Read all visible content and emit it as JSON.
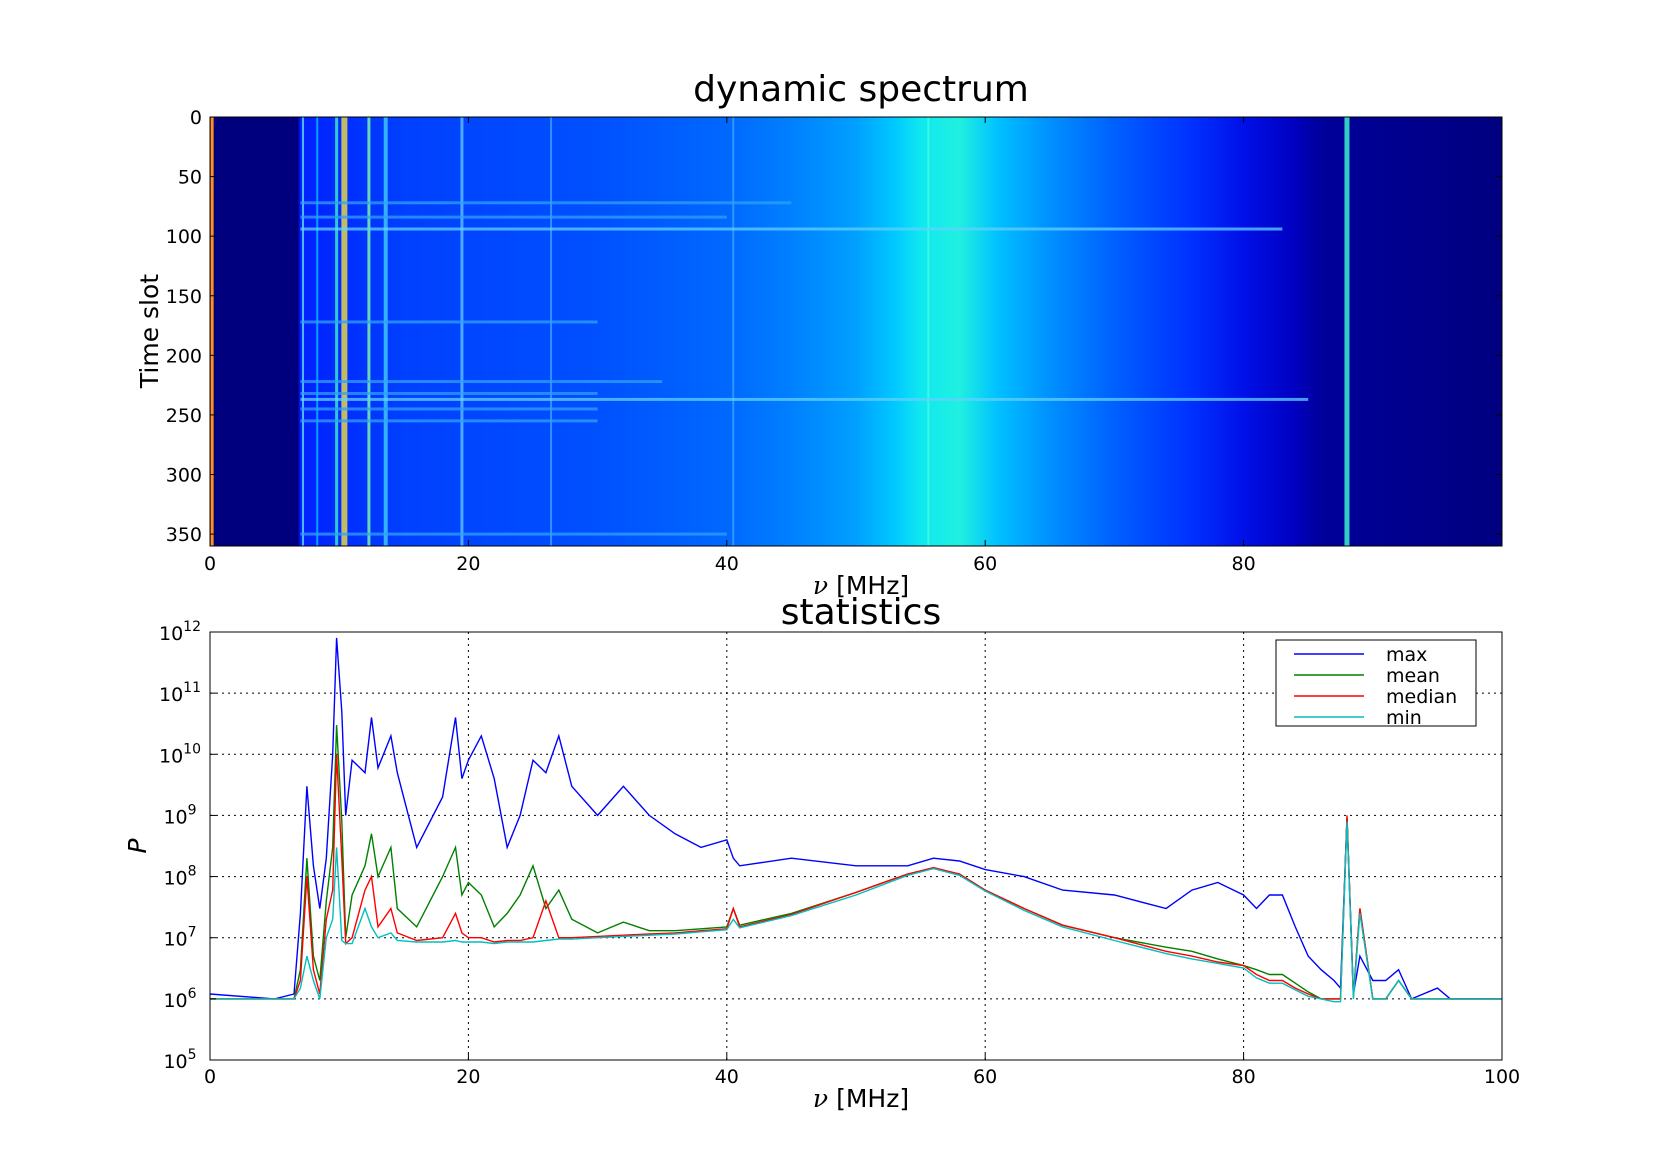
{
  "chart_data": [
    {
      "type": "heatmap",
      "title": "dynamic spectrum",
      "xlabel_symbol": "ν",
      "xlabel_unit": "[MHz]",
      "ylabel": "Time slot",
      "xlim": [
        0,
        100
      ],
      "ylim": [
        360,
        0
      ],
      "x_ticks": [
        "0",
        "20",
        "40",
        "60",
        "80"
      ],
      "y_ticks": [
        "0",
        "50",
        "100",
        "150",
        "200",
        "250",
        "300",
        "350"
      ],
      "colormap": "jet",
      "grid": false,
      "bright_time_slots": [
        72,
        84,
        94,
        172,
        222,
        232,
        237,
        245,
        255,
        350
      ],
      "bright_channels_mhz": [
        7.2,
        8.3,
        9.8,
        10.4,
        12.3,
        13.6,
        19.5,
        26.4,
        40.5,
        55.6,
        88.0
      ]
    },
    {
      "type": "line",
      "title": "statistics",
      "xlabel_symbol": "ν",
      "xlabel_unit": "[MHz]",
      "ylabel": "P",
      "xlim": [
        0,
        100
      ],
      "ylim": [
        100000,
        1000000000000
      ],
      "yscale": "log",
      "grid": true,
      "legend_position": "top-right",
      "x_ticks": [
        "0",
        "20",
        "40",
        "60",
        "80",
        "100"
      ],
      "y_tick_exponents": [
        "5",
        "6",
        "7",
        "8",
        "9",
        "10",
        "11",
        "12"
      ],
      "x": [
        0,
        5,
        6.5,
        7,
        7.5,
        8,
        8.5,
        9,
        9.5,
        9.8,
        10.2,
        10.5,
        11,
        12,
        12.5,
        13,
        14,
        14.5,
        16,
        18,
        19,
        19.5,
        20,
        21,
        22,
        23,
        24,
        25,
        26,
        27,
        28,
        30,
        32,
        34,
        36,
        38,
        40,
        40.5,
        41,
        45,
        50,
        54,
        56,
        58,
        60,
        63,
        66,
        70,
        74,
        76,
        78,
        80,
        81,
        82,
        83,
        84,
        85,
        86,
        87,
        87.5,
        88,
        88.5,
        89,
        90,
        91,
        92,
        93,
        95,
        96,
        100
      ],
      "series": [
        {
          "name": "max",
          "color": "#0000ff",
          "values": [
            1200000.0,
            1000000.0,
            1200000.0,
            25000000.0,
            3000000000.0,
            150000000.0,
            30000000.0,
            200000000.0,
            10000000000.0,
            800000000000.0,
            50000000000.0,
            1000000000.0,
            8000000000.0,
            5000000000.0,
            40000000000.0,
            6000000000.0,
            20000000000.0,
            5000000000.0,
            300000000.0,
            2000000000.0,
            40000000000.0,
            4000000000.0,
            8000000000.0,
            20000000000.0,
            4000000000.0,
            300000000.0,
            1000000000.0,
            8000000000.0,
            5000000000.0,
            20000000000.0,
            3000000000.0,
            1000000000.0,
            3000000000.0,
            1000000000.0,
            500000000.0,
            300000000.0,
            400000000.0,
            200000000.0,
            150000000.0,
            200000000.0,
            150000000.0,
            150000000.0,
            200000000.0,
            180000000.0,
            130000000.0,
            100000000.0,
            60000000.0,
            50000000.0,
            30000000.0,
            60000000.0,
            80000000.0,
            50000000.0,
            30000000.0,
            50000000.0,
            50000000.0,
            15000000.0,
            5000000.0,
            3000000.0,
            2000000.0,
            1500000.0,
            900000000.0,
            1200000.0,
            5000000.0,
            2000000.0,
            2000000.0,
            3000000.0,
            1000000.0,
            1500000.0,
            1000000.0,
            1000000.0
          ]
        },
        {
          "name": "mean",
          "color": "#008000",
          "values": [
            1000000.0,
            1000000.0,
            1000000.0,
            3000000.0,
            200000000.0,
            5000000.0,
            2000000.0,
            40000000.0,
            300000000.0,
            30000000000.0,
            800000000.0,
            10000000.0,
            50000000.0,
            150000000.0,
            500000000.0,
            100000000.0,
            300000000.0,
            30000000.0,
            15000000.0,
            100000000.0,
            300000000.0,
            50000000.0,
            80000000.0,
            50000000.0,
            15000000.0,
            25000000.0,
            50000000.0,
            150000000.0,
            30000000.0,
            60000000.0,
            20000000.0,
            12000000.0,
            18000000.0,
            13000000.0,
            13000000.0,
            14000000.0,
            15000000.0,
            30000000.0,
            16000000.0,
            25000000.0,
            55000000.0,
            110000000.0,
            135000000.0,
            110000000.0,
            60000000.0,
            30000000.0,
            16000000.0,
            10000000.0,
            7000000.0,
            6000000.0,
            4500000.0,
            3500000.0,
            3000000.0,
            2500000.0,
            2500000.0,
            1800000.0,
            1300000.0,
            1000000.0,
            1000000.0,
            1000000.0,
            900000000.0,
            1100000.0,
            30000000.0,
            1000000.0,
            1000000.0,
            2000000.0,
            1000000.0,
            1000000.0,
            1000000.0,
            1000000.0
          ]
        },
        {
          "name": "median",
          "color": "#ff0000",
          "values": [
            1000000.0,
            1000000.0,
            1000000.0,
            2000000.0,
            100000000.0,
            3000000.0,
            1200000.0,
            20000000.0,
            60000000.0,
            10000000000.0,
            200000000.0,
            8000000.0,
            10000000.0,
            60000000.0,
            100000000.0,
            15000000.0,
            30000000.0,
            12000000.0,
            9000000.0,
            10000000.0,
            25000000.0,
            12000000.0,
            10000000.0,
            10000000.0,
            8500000.0,
            9000000.0,
            9000000.0,
            10000000.0,
            40000000.0,
            10000000.0,
            10000000.0,
            10500000.0,
            11000000.0,
            11500000.0,
            12000000.0,
            13000000.0,
            14000000.0,
            30000000.0,
            15000000.0,
            24000000.0,
            55000000.0,
            110000000.0,
            140000000.0,
            110000000.0,
            60000000.0,
            30000000.0,
            16000000.0,
            10000000.0,
            6000000.0,
            5000000.0,
            4000000.0,
            3500000.0,
            2500000.0,
            2000000.0,
            2000000.0,
            1500000.0,
            1200000.0,
            1000000.0,
            1000000.0,
            1000000.0,
            1000000000.0,
            1100000.0,
            30000000.0,
            1000000.0,
            1000000.0,
            2000000.0,
            1000000.0,
            1000000.0,
            1000000.0,
            1000000.0
          ]
        },
        {
          "name": "min",
          "color": "#00bfbf",
          "values": [
            1000000.0,
            1000000.0,
            1000000.0,
            1500000.0,
            5000000.0,
            2000000.0,
            1000000.0,
            10000000.0,
            20000000.0,
            300000000.0,
            9000000.0,
            8000000.0,
            8000000.0,
            30000000.0,
            15000000.0,
            10000000.0,
            12000000.0,
            9000000.0,
            8500000.0,
            8500000.0,
            9000000.0,
            8500000.0,
            8500000.0,
            8500000.0,
            8000000.0,
            8500000.0,
            8500000.0,
            8500000.0,
            9000000.0,
            9500000.0,
            9500000.0,
            10000000.0,
            10500000.0,
            11000000.0,
            11500000.0,
            12500000.0,
            13500000.0,
            20000000.0,
            14500000.0,
            23000000.0,
            50000000.0,
            105000000.0,
            135000000.0,
            105000000.0,
            58000000.0,
            28000000.0,
            15000000.0,
            9000000.0,
            5500000.0,
            4500000.0,
            3800000.0,
            3200000.0,
            2200000.0,
            1800000.0,
            1800000.0,
            1400000.0,
            1100000.0,
            1000000.0,
            900000.0,
            900000.0,
            800000000.0,
            1000000.0,
            25000000.0,
            1000000.0,
            1000000.0,
            2000000.0,
            1000000.0,
            1000000.0,
            1000000.0,
            1000000.0
          ]
        }
      ]
    }
  ]
}
